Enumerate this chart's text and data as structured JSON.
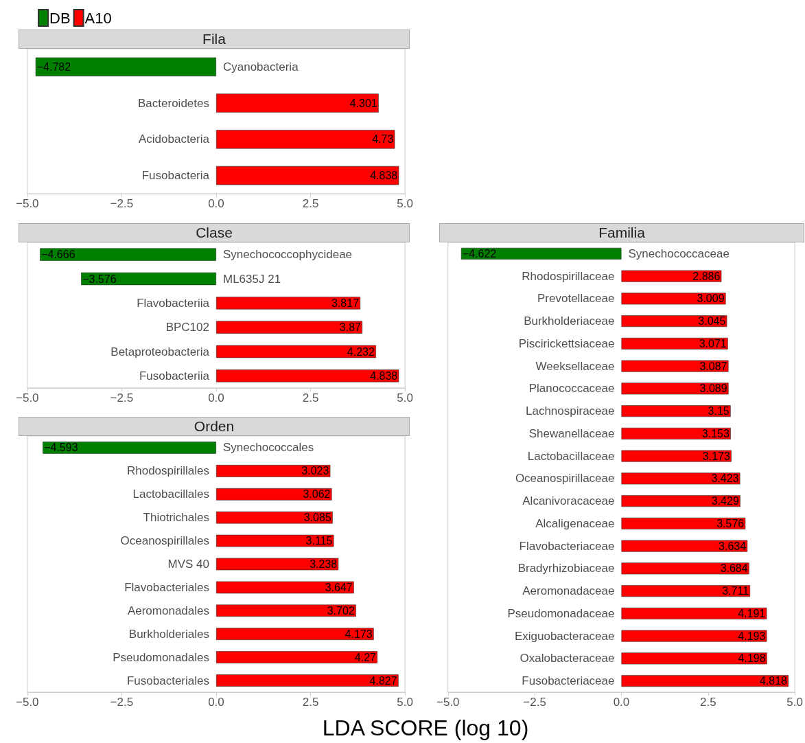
{
  "chart_data": [
    {
      "type": "bar",
      "title": "Fila",
      "orientation": "horizontal",
      "stacked": true,
      "data_labels": true,
      "legend": "top left",
      "grid": false,
      "categories": [
        "Cyanobacteria",
        "Bacteroidetes",
        "Acidobacteria",
        "Fusobacteria"
      ],
      "series": [
        {
          "name": "DB",
          "color": "#008000",
          "values": [
            -4.782,
            null,
            null,
            null
          ]
        },
        {
          "name": "A10",
          "color": "#ff0000",
          "values": [
            null,
            4.301,
            4.73,
            4.838
          ]
        }
      ],
      "xlim": [
        -5,
        5
      ],
      "xticks": [
        {
          "value": -5,
          "label": "−5.0"
        },
        {
          "value": -2.5,
          "label": "−2.5"
        },
        {
          "value": 0,
          "label": "0.0"
        },
        {
          "value": 2.5,
          "label": "2.5"
        },
        {
          "value": 5,
          "label": "5.0"
        }
      ]
    },
    {
      "type": "bar",
      "title": "Clase",
      "orientation": "horizontal",
      "stacked": true,
      "data_labels": true,
      "grid": false,
      "categories": [
        "Synechococcophycideae",
        "ML635J 21",
        "Flavobacteriia",
        "BPC102",
        "Betaproteobacteria",
        "Fusobacteriia"
      ],
      "series": [
        {
          "color": "#008000",
          "values": [
            -4.666,
            -3.576,
            null,
            null,
            null,
            null
          ]
        },
        {
          "color": "#ff0000",
          "values": [
            null,
            null,
            3.817,
            3.87,
            4.232,
            4.838
          ]
        }
      ],
      "xlim": [
        -5,
        5
      ],
      "xticks": [
        {
          "value": -5,
          "label": "−5.0"
        },
        {
          "value": -2.5,
          "label": "−2.5"
        },
        {
          "value": 0,
          "label": "0.0"
        },
        {
          "value": 2.5,
          "label": "2.5"
        },
        {
          "value": 5,
          "label": "5.0"
        }
      ]
    },
    {
      "type": "bar",
      "title": "Orden",
      "orientation": "horizontal",
      "stacked": true,
      "data_labels": true,
      "grid": false,
      "categories": [
        "Synechococcales",
        "Rhodospirillales",
        "Lactobacillales",
        "Thiotrichales",
        "Oceanospirillales",
        "MVS 40",
        "Flavobacteriales",
        "Aeromonadales",
        "Burkholderiales",
        "Pseudomonadales",
        "Fusobacteriales"
      ],
      "series": [
        {
          "color": "#008000",
          "values": [
            -4.593,
            null,
            null,
            null,
            null,
            null,
            null,
            null,
            null,
            null,
            null
          ]
        },
        {
          "color": "#ff0000",
          "values": [
            null,
            3.023,
            3.062,
            3.085,
            3.115,
            3.238,
            3.647,
            3.702,
            4.173,
            4.27,
            4.827
          ]
        }
      ],
      "xlim": [
        -5,
        5
      ],
      "xticks": [
        {
          "value": -5,
          "label": "−5.0"
        },
        {
          "value": -2.5,
          "label": "−2.5"
        },
        {
          "value": 0,
          "label": "0.0"
        },
        {
          "value": 2.5,
          "label": "2.5"
        },
        {
          "value": 5,
          "label": "5.0"
        }
      ]
    },
    {
      "type": "bar",
      "title": "Familia",
      "xlabel": "LDA SCORE (log 10)",
      "orientation": "horizontal",
      "stacked": true,
      "data_labels": true,
      "grid": false,
      "categories": [
        "Synechococcaceae",
        "Rhodospirillaceae",
        "Prevotellaceae",
        "Burkholderiaceae",
        "Piscirickettsiaceae",
        "Weeksellaceae",
        "Planococcaceae",
        "Lachnospiraceae",
        "Shewanellaceae",
        "Lactobacillaceae",
        "Oceanospirillaceae",
        "Alcanivoracaceae",
        "Alcaligenaceae",
        "Flavobacteriaceae",
        "Bradyrhizobiaceae",
        "Aeromonadaceae",
        "Pseudomonadaceae",
        "Exiguobacteraceae",
        "Oxalobacteraceae",
        "Fusobacteriaceae"
      ],
      "series": [
        {
          "color": "#008000",
          "values": [
            -4.622,
            null,
            null,
            null,
            null,
            null,
            null,
            null,
            null,
            null,
            null,
            null,
            null,
            null,
            null,
            null,
            null,
            null,
            null,
            null
          ]
        },
        {
          "color": "#ff0000",
          "values": [
            null,
            2.886,
            3.009,
            3.045,
            3.071,
            3.087,
            3.089,
            3.15,
            3.153,
            3.173,
            3.423,
            3.429,
            3.576,
            3.634,
            3.684,
            3.711,
            4.191,
            4.193,
            4.198,
            4.818
          ]
        }
      ],
      "xlim": [
        -5,
        5
      ],
      "xticks": [
        {
          "value": -5,
          "label": "−5.0"
        },
        {
          "value": -2.5,
          "label": "−2.5"
        },
        {
          "value": 0,
          "label": "0.0"
        },
        {
          "value": 2.5,
          "label": "2.5"
        },
        {
          "value": 5,
          "label": "5.0"
        }
      ]
    }
  ]
}
